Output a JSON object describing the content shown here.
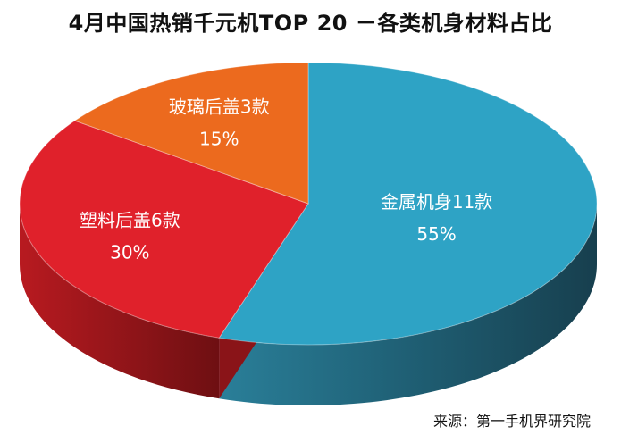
{
  "title": "4月中国热销千元机TOP 20 －各类机身材料占比",
  "source": "来源：第一手机界研究院",
  "chart_data": {
    "type": "pie",
    "title": "4月中国热销千元机TOP 20 －各类机身材料占比",
    "is_3d": true,
    "slices": [
      {
        "label": "金属机身11款",
        "value": 55,
        "percent_label": "55%",
        "color": "#2ea3c5",
        "side_color": "#1c5f76"
      },
      {
        "label": "塑料后盖6款",
        "value": 30,
        "percent_label": "30%",
        "color": "#e0212b",
        "side_color": "#8a1418"
      },
      {
        "label": "玻璃后盖3款",
        "value": 15,
        "percent_label": "15%",
        "color": "#ec6a1e",
        "side_color": "#9a4412"
      }
    ]
  }
}
